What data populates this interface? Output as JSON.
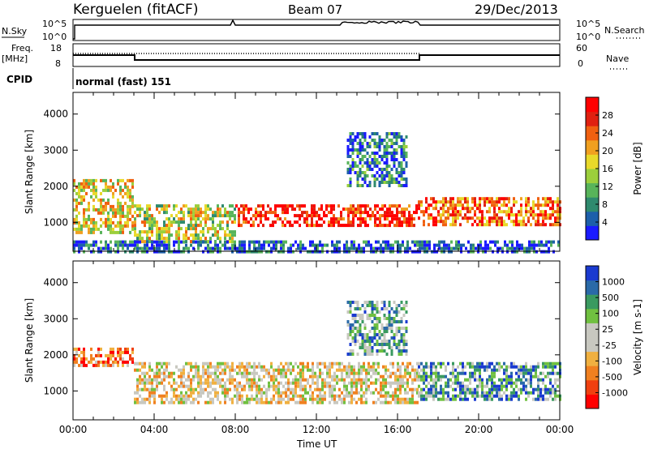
{
  "header": {
    "station": "Kerguelen (fitACF)",
    "beam": "Beam 07",
    "date": "29/Dec/2013"
  },
  "strips": {
    "nsky_label": "N.Sky",
    "nsky_ticks": [
      "10^5",
      "10^0"
    ],
    "nsearch_label": "N.Search",
    "nsearch_ticks": [
      "10^5",
      "10^0"
    ],
    "freq_label": "Freq.",
    "freq_unit": "[MHz]",
    "freq_ticks": [
      "18",
      "8"
    ],
    "nave_label": "Nave",
    "nave_ticks": [
      "60",
      "0"
    ],
    "cpid_label": "CPID",
    "cpid_value": "normal (fast) 151"
  },
  "chart_data": [
    {
      "type": "heatmap",
      "ylabel": "Slant Range [km]",
      "yticks": [
        "4000",
        "3000",
        "2000",
        "1000"
      ],
      "ylim": [
        200,
        4600
      ],
      "colorbar": {
        "label": "Power [dB]",
        "ticks": [
          "28",
          "24",
          "20",
          "16",
          "12",
          "8",
          "4"
        ],
        "range": [
          0,
          32
        ],
        "colors": [
          "#1a1aff",
          "#1d5faa",
          "#2f8a6e",
          "#58b45a",
          "#9ccf3c",
          "#e8d92a",
          "#f0a020",
          "#f06010",
          "#e02010",
          "#ff0000"
        ]
      },
      "bands": [
        {
          "t0": 0,
          "t1": 3,
          "r0": 700,
          "r1": 2200,
          "level": 0.55
        },
        {
          "t0": 3,
          "t1": 8,
          "r0": 500,
          "r1": 1500,
          "level": 0.5
        },
        {
          "t0": 8,
          "t1": 17,
          "r0": 900,
          "r1": 1500,
          "level": 0.9
        },
        {
          "t0": 17,
          "t1": 24,
          "r0": 900,
          "r1": 1700,
          "level": 0.75
        },
        {
          "t0": 13.5,
          "t1": 16.5,
          "r0": 2000,
          "r1": 3500,
          "level": 0.2
        },
        {
          "t0": 0,
          "t1": 24,
          "r0": 200,
          "r1": 500,
          "level": 0.15
        }
      ]
    },
    {
      "type": "heatmap",
      "ylabel": "Slant Range [km]",
      "yticks": [
        "4000",
        "3000",
        "2000",
        "1000"
      ],
      "ylim": [
        200,
        4600
      ],
      "xlabel": "Time UT",
      "xticks": [
        "00:00",
        "04:00",
        "08:00",
        "12:00",
        "16:00",
        "20:00",
        "00:00"
      ],
      "xlim": [
        0,
        24
      ],
      "colorbar": {
        "label": "Velocity [m s-1]",
        "ticks": [
          "1000",
          "500",
          "100",
          "25",
          "-25",
          "-100",
          "-500",
          "-1000"
        ],
        "range": [
          -1200,
          1200
        ],
        "colors": [
          "#ff0000",
          "#f04010",
          "#f08020",
          "#f0b040",
          "#c8c8c0",
          "#c8c8c0",
          "#70c040",
          "#3a9a60",
          "#2a6aa8",
          "#1a3ad0"
        ]
      },
      "bands": [
        {
          "t0": 0,
          "t1": 3,
          "r0": 1700,
          "r1": 2200,
          "level": 0.2
        },
        {
          "t0": 3,
          "t1": 17,
          "r0": 700,
          "r1": 1800,
          "level": 0.45
        },
        {
          "t0": 17,
          "t1": 24,
          "r0": 800,
          "r1": 1800,
          "level": 0.75
        },
        {
          "t0": 13.5,
          "t1": 16.5,
          "r0": 2000,
          "r1": 3500,
          "level": 0.7
        }
      ]
    }
  ]
}
